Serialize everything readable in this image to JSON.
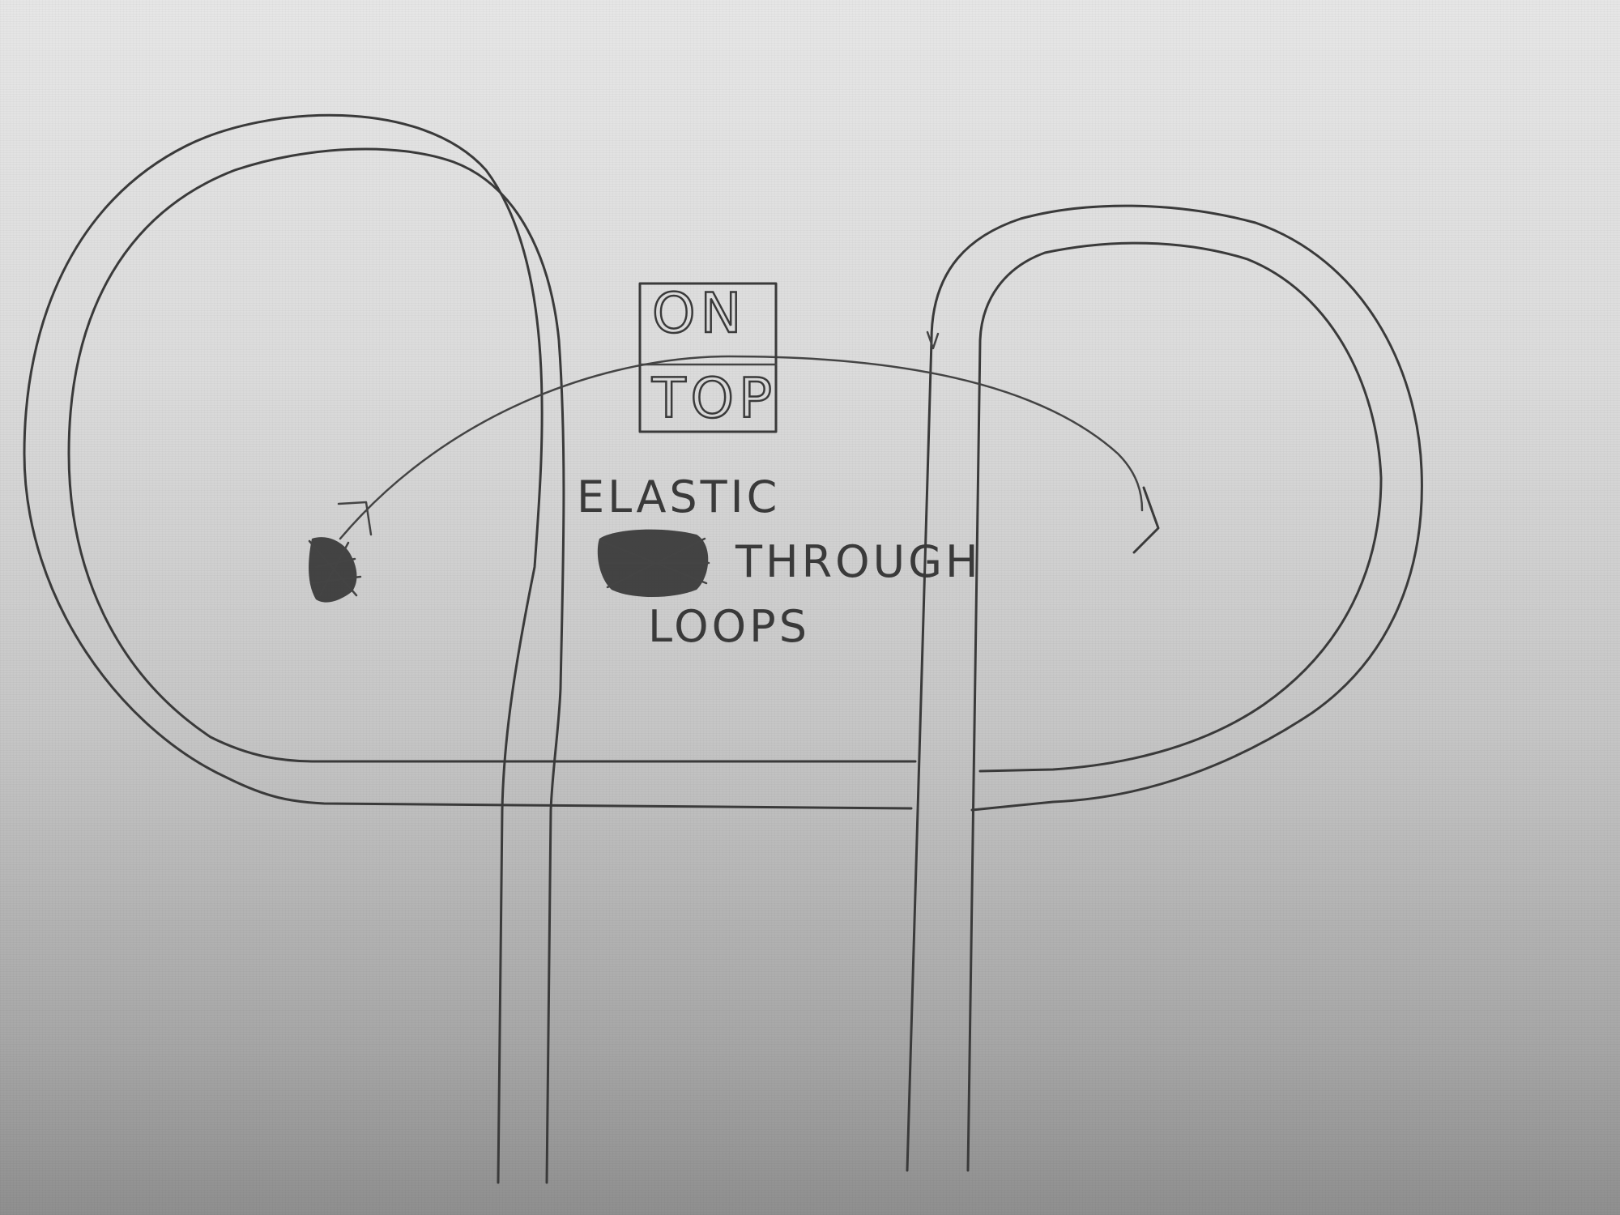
{
  "sign": {
    "line1": "ON",
    "line2": "TOP"
  },
  "caption": {
    "line1": "ELASTIC",
    "line2": "THROUGH",
    "line3": "LOOPS"
  },
  "colors": {
    "ink": "#3a3a3a",
    "scribble": "#2a2a2a"
  }
}
